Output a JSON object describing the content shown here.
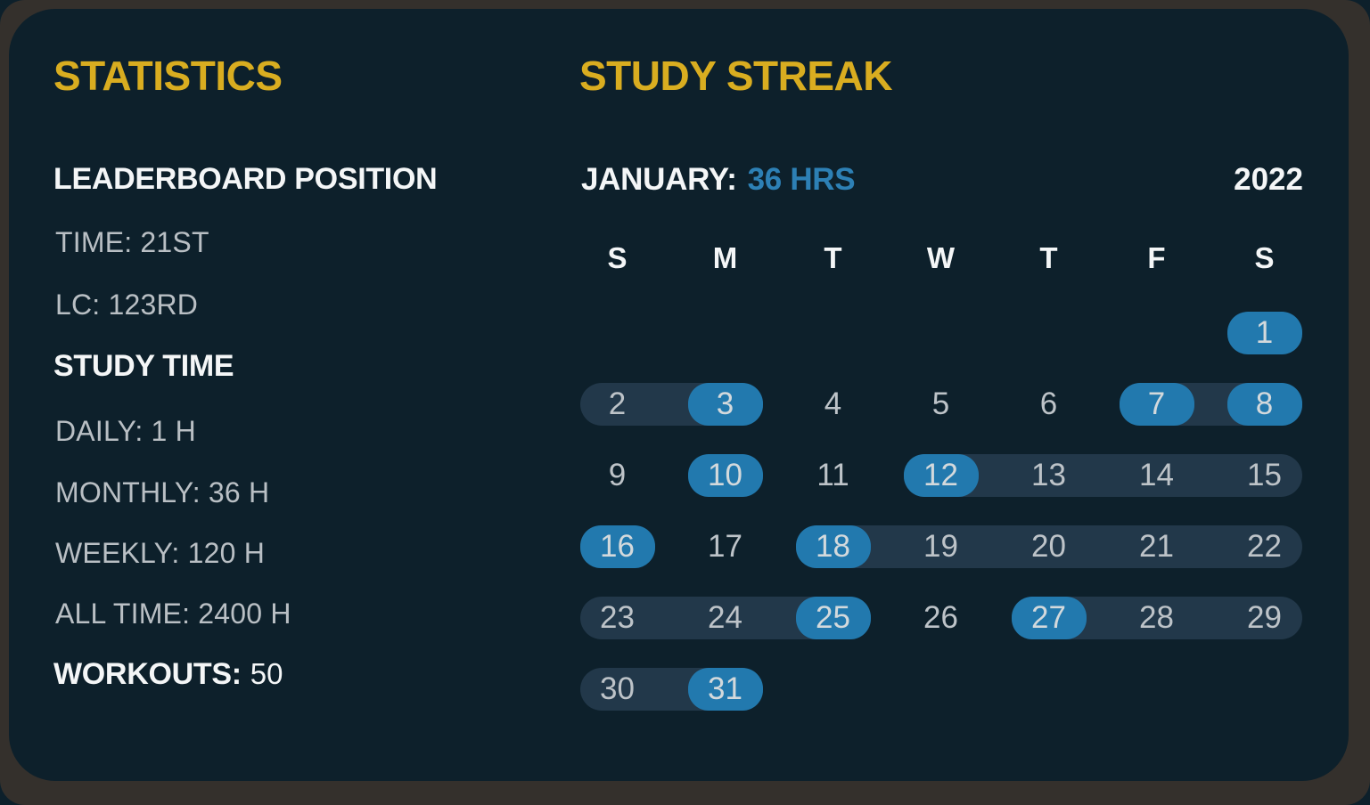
{
  "card": {
    "stats": {
      "title": "STATISTICS",
      "leaderboard_heading": "LEADERBOARD POSITION",
      "time_line": "TIME: 21ST",
      "lc_line": "LC: 123RD",
      "study_time_heading": "STUDY TIME",
      "daily_line": "DAILY: 1 H",
      "monthly_line": "MONTHLY: 36 H",
      "weekly_line": "WEEKLY: 120 H",
      "all_time_line": "ALL TIME: 2400 H",
      "workouts_label": "WORKOUTS:",
      "workouts_value": "50"
    },
    "streak": {
      "title": "STUDY STREAK",
      "month_label": "JANUARY:",
      "month_hours": "36 HRS",
      "year": "2022",
      "weekday_headers": [
        "S",
        "M",
        "T",
        "W",
        "T",
        "F",
        "S"
      ],
      "calendar": {
        "days_in_month": 31,
        "first_day_column": 7,
        "active_days": [
          1,
          3,
          7,
          8,
          10,
          12,
          16,
          18,
          25,
          27,
          31
        ],
        "streak_spans": [
          [
            2,
            3
          ],
          [
            7,
            8
          ],
          [
            12,
            15
          ],
          [
            18,
            22
          ],
          [
            23,
            25
          ],
          [
            27,
            29
          ],
          [
            30,
            31
          ]
        ]
      }
    },
    "colors": {
      "accent_yellow": "#d9ad20",
      "accent_blue": "#2279ae",
      "accent_blue_text": "#2d80b5",
      "streak_pill": "#22384a",
      "card_bg": "#0d202b",
      "frame_bg": "#34302c",
      "text_gray": "#b9bfc4",
      "text_white": "#f4f6f7",
      "day_gray": "#bdc3c8",
      "active_day_text": "#d3d9dc"
    }
  }
}
